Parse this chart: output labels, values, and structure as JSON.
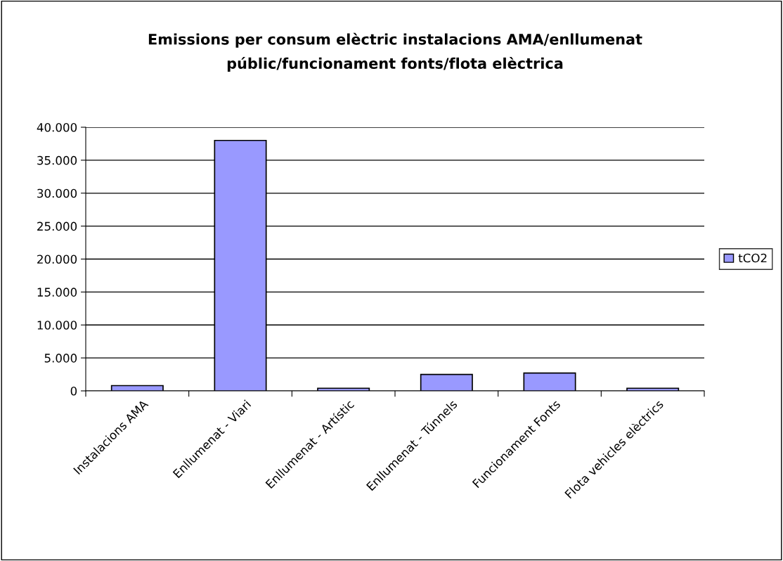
{
  "chart_data": {
    "type": "bar",
    "title": "Emissions per consum elèctric instalacions AMA/enllumenat\npúblic/funcionament fonts/flota elèctrica",
    "categories": [
      "Instalacions AMA",
      "Enllumenat - Viari",
      "Enllumenat - Artístic",
      "Enllumenat - Túnnels",
      "Funcionament Fonts",
      "Flota vehicles elèctrics"
    ],
    "series": [
      {
        "name": "tCO2",
        "color": "#9999ff",
        "values": [
          800,
          38000,
          400,
          2500,
          2700,
          400
        ]
      }
    ],
    "ylim": [
      0,
      40000
    ],
    "yticks": [
      {
        "value": 0,
        "label": "0"
      },
      {
        "value": 5000,
        "label": "5.000"
      },
      {
        "value": 10000,
        "label": "10.000"
      },
      {
        "value": 15000,
        "label": "15.000"
      },
      {
        "value": 20000,
        "label": "20.000"
      },
      {
        "value": 25000,
        "label": "25.000"
      },
      {
        "value": 30000,
        "label": "30.000"
      },
      {
        "value": 35000,
        "label": "35.000"
      },
      {
        "value": 40000,
        "label": "40.000"
      }
    ],
    "grid": "y",
    "legend": "right"
  }
}
